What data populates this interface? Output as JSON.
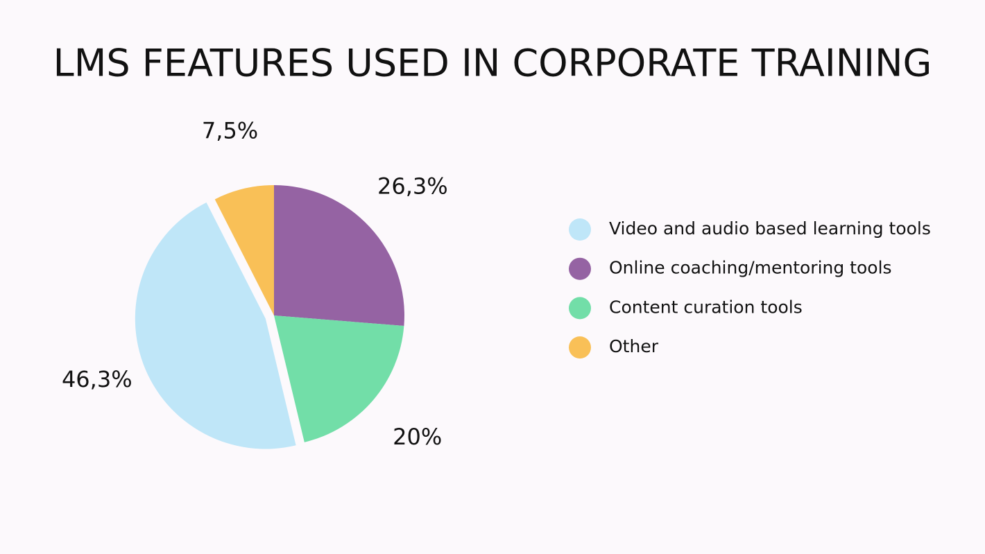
{
  "chart_data": {
    "type": "pie",
    "title": "LMS FEATURES USED IN CORPORATE TRAINING",
    "categories": [
      "Video and audio based learning tools",
      "Online coaching/mentoring tools",
      "Content curation tools",
      "Other"
    ],
    "values": [
      46.3,
      26.3,
      20,
      7.5
    ],
    "value_labels": [
      "46,3%",
      "26,3%",
      "20%",
      "7,5%"
    ],
    "colors": [
      "#bfe6f8",
      "#9563a3",
      "#72dea8",
      "#f9c057"
    ],
    "legend": "right"
  }
}
